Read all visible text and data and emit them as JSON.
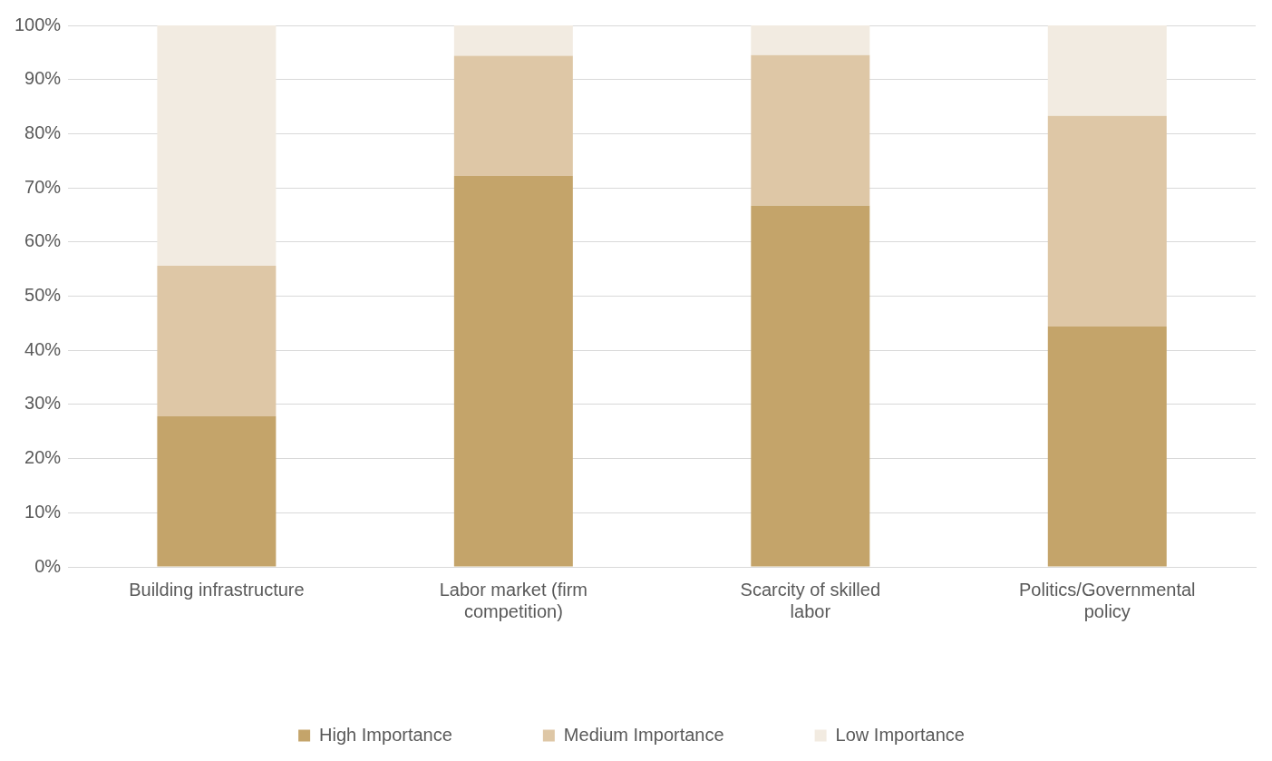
{
  "chart_data": {
    "type": "bar",
    "stacked": true,
    "categories": [
      "Building infrastructure",
      "Labor market (firm competition)",
      "Scarcity of skilled labor",
      "Politics/Governmental policy"
    ],
    "series": [
      {
        "name": "High Importance",
        "color": "#c4a46a",
        "values": [
          27.8,
          72.2,
          66.7,
          44.4
        ]
      },
      {
        "name": "Medium Importance",
        "color": "#dec7a6",
        "values": [
          27.8,
          22.2,
          27.8,
          38.9
        ]
      },
      {
        "name": "Low Importance",
        "color": "#f2ebe1",
        "values": [
          44.4,
          5.6,
          5.5,
          16.7
        ]
      }
    ],
    "ylim": [
      0,
      100
    ],
    "yticks": [
      {
        "value": 0,
        "label": "0%"
      },
      {
        "value": 10,
        "label": "10%"
      },
      {
        "value": 20,
        "label": "20%"
      },
      {
        "value": 30,
        "label": "30%"
      },
      {
        "value": 40,
        "label": "40%"
      },
      {
        "value": 50,
        "label": "50%"
      },
      {
        "value": 60,
        "label": "60%"
      },
      {
        "value": 70,
        "label": "70%"
      },
      {
        "value": 80,
        "label": "80%"
      },
      {
        "value": 90,
        "label": "90%"
      },
      {
        "value": 100,
        "label": "100%"
      }
    ],
    "grid": "y",
    "legend": "bottom"
  }
}
